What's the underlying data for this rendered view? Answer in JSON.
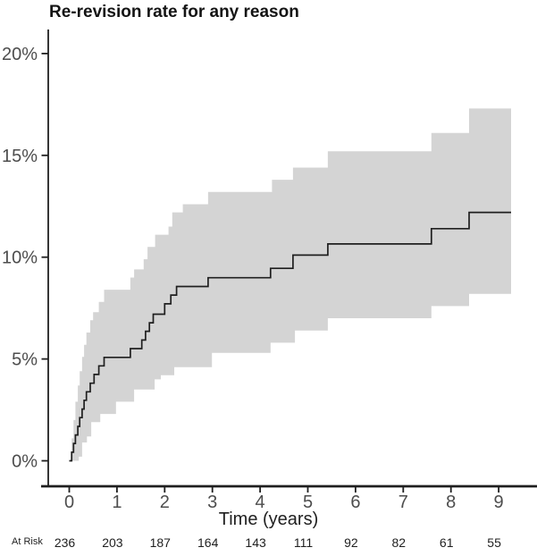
{
  "chart_data": {
    "type": "line",
    "subtype": "kaplan_meier_step_with_ci_band",
    "title": "Re-revision rate for any reason",
    "xlabel": "Time (years)",
    "ylabel": "",
    "grid": "off",
    "legend": "none",
    "x_ticks": [
      0,
      1,
      2,
      3,
      4,
      5,
      6,
      7,
      8,
      9
    ],
    "x_tick_labels": [
      "0",
      "1",
      "2",
      "3",
      "4",
      "5",
      "6",
      "7",
      "8",
      "9"
    ],
    "y_ticks": [
      0,
      5,
      10,
      15,
      20
    ],
    "y_tick_labels": [
      "0%",
      "5%",
      "10%",
      "15%",
      "20%"
    ],
    "xlim": [
      -0.55,
      9.8
    ],
    "ylim": [
      0,
      21.2
    ],
    "end_time": 9.26,
    "y_unit": "percent",
    "series": [
      {
        "name": "re-revision-rate-estimate",
        "style": "step",
        "color": "#1f1f1f",
        "points": [
          [
            0,
            0
          ],
          [
            0.05,
            0.42
          ],
          [
            0.09,
            0.85
          ],
          [
            0.13,
            1.27
          ],
          [
            0.18,
            1.69
          ],
          [
            0.22,
            2.12
          ],
          [
            0.27,
            2.54
          ],
          [
            0.31,
            2.97
          ],
          [
            0.36,
            3.39
          ],
          [
            0.44,
            3.81
          ],
          [
            0.52,
            4.24
          ],
          [
            0.62,
            4.66
          ],
          [
            0.73,
            5.08
          ],
          [
            1.28,
            5.51
          ],
          [
            1.52,
            5.93
          ],
          [
            1.6,
            6.36
          ],
          [
            1.68,
            6.78
          ],
          [
            1.76,
            7.2
          ],
          [
            2.0,
            7.71
          ],
          [
            2.13,
            8.14
          ],
          [
            2.25,
            8.56
          ],
          [
            2.91,
            8.99
          ],
          [
            4.22,
            9.45
          ],
          [
            4.69,
            10.1
          ],
          [
            5.42,
            10.65
          ],
          [
            7.59,
            11.4
          ],
          [
            8.38,
            12.2
          ]
        ]
      },
      {
        "name": "ci-upper",
        "style": "step",
        "color": "#d4d4d4",
        "points": [
          [
            0,
            0
          ],
          [
            0.05,
            1.1
          ],
          [
            0.09,
            2.0
          ],
          [
            0.13,
            2.9
          ],
          [
            0.18,
            3.7
          ],
          [
            0.22,
            4.4
          ],
          [
            0.27,
            5.1
          ],
          [
            0.31,
            5.7
          ],
          [
            0.36,
            6.3
          ],
          [
            0.44,
            6.9
          ],
          [
            0.5,
            7.3
          ],
          [
            0.62,
            7.8
          ],
          [
            0.73,
            8.4
          ],
          [
            1.28,
            9.0
          ],
          [
            1.36,
            9.4
          ],
          [
            1.56,
            9.9
          ],
          [
            1.64,
            10.5
          ],
          [
            1.8,
            11.1
          ],
          [
            2.08,
            11.5
          ],
          [
            2.16,
            12.2
          ],
          [
            2.38,
            12.6
          ],
          [
            2.91,
            13.2
          ],
          [
            4.25,
            13.8
          ],
          [
            4.69,
            14.4
          ],
          [
            5.42,
            15.2
          ],
          [
            7.59,
            16.1
          ],
          [
            8.38,
            17.3
          ]
        ]
      },
      {
        "name": "ci-lower",
        "style": "step",
        "color": "#d4d4d4",
        "points": [
          [
            0,
            0
          ],
          [
            0.2,
            0.2
          ],
          [
            0.27,
            0.9
          ],
          [
            0.37,
            1.2
          ],
          [
            0.46,
            1.9
          ],
          [
            0.65,
            2.3
          ],
          [
            0.98,
            2.9
          ],
          [
            1.36,
            3.5
          ],
          [
            1.79,
            4.0
          ],
          [
            1.92,
            4.2
          ],
          [
            2.2,
            4.6
          ],
          [
            2.99,
            5.3
          ],
          [
            4.22,
            5.8
          ],
          [
            4.73,
            6.4
          ],
          [
            5.42,
            7.0
          ],
          [
            7.59,
            7.6
          ],
          [
            8.38,
            8.2
          ]
        ]
      }
    ],
    "at_risk": {
      "label": "At Risk",
      "times": [
        0,
        1,
        2,
        3,
        4,
        5,
        6,
        7,
        8,
        9
      ],
      "counts": [
        236,
        203,
        187,
        164,
        143,
        111,
        92,
        82,
        61,
        55
      ]
    }
  },
  "colors": {
    "band_fill": "#d4d4d4",
    "curve_line": "#1f1f1f",
    "axis_line": "#1f1f1f",
    "tick_label": "#4d4d4d",
    "text": "#1f1f1f",
    "background": "#ffffff"
  }
}
